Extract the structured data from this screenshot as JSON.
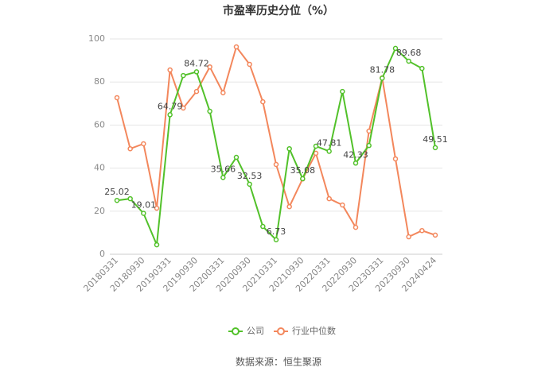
{
  "chart_data": {
    "type": "line",
    "title": "市盈率历史分位（%）",
    "source": "数据来源：恒生聚源",
    "categories": [
      "20180331",
      null,
      "20180930",
      null,
      "20190331",
      null,
      "20190930",
      null,
      "20200331",
      null,
      "20200930",
      null,
      "20210331",
      null,
      "20210930",
      null,
      "20220331",
      null,
      "20220930",
      null,
      "20230331",
      null,
      "20230930",
      null,
      "20240424"
    ],
    "series": [
      {
        "name": "公司",
        "color": "#52c12a",
        "values": [
          25.02,
          25.8,
          19.01,
          4.4,
          64.79,
          83,
          84.72,
          66.4,
          35.66,
          45,
          32.53,
          12.9,
          6.73,
          49,
          35.08,
          50.2,
          47.81,
          75.6,
          42.33,
          50.5,
          81.78,
          95.6,
          89.68,
          86.3,
          49.51
        ],
        "value_labels": [
          "25.02",
          null,
          "19.01",
          null,
          "64.79",
          null,
          "84.72",
          null,
          "35.66",
          null,
          "32.53",
          null,
          "6.73",
          null,
          "35.08",
          null,
          "47.81",
          null,
          "42.33",
          null,
          "81.78",
          null,
          "89.68",
          null,
          "49.51"
        ]
      },
      {
        "name": "行业中位数",
        "color": "#f3875c",
        "values": [
          72.7,
          49,
          51.3,
          21.4,
          85.6,
          67.9,
          75.6,
          87,
          75,
          96.3,
          88.2,
          70.8,
          41.7,
          22.1,
          35,
          46.9,
          25.8,
          22.9,
          12.5,
          57.2,
          81.9,
          44.3,
          8.1,
          11,
          8.9
        ]
      }
    ],
    "ylim": [
      0,
      100
    ],
    "yticks": [
      0,
      20,
      40,
      60,
      80,
      100
    ],
    "grid": true,
    "legend": "bottom"
  }
}
